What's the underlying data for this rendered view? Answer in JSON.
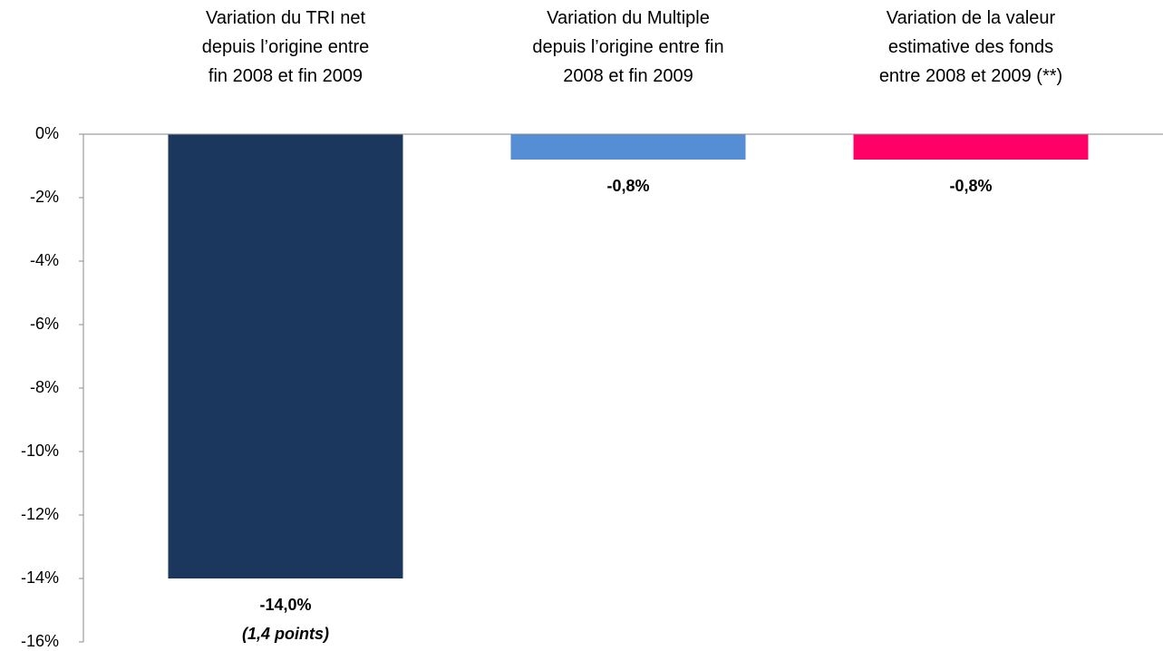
{
  "chart_data": {
    "type": "bar",
    "categories": [
      "Variation du TRI net\ndepuis l’origine entre\nfin 2008 et fin 2009",
      "Variation du Multiple\ndepuis l’origine entre fin\n2008 et fin 2009",
      "Variation de la valeur\nestimative des fonds\nentre 2008 et 2009 (**)"
    ],
    "values": [
      -14.0,
      -0.8,
      -0.8
    ],
    "value_labels": [
      "-14,0%",
      "-0,8%",
      "-0,8%"
    ],
    "colors": [
      "#1b375d",
      "#558ed5",
      "#ff0066"
    ],
    "annotation": "(1,4 points)",
    "ylim": [
      -16,
      0
    ],
    "yticks": [
      {
        "value": 0,
        "label": "0%"
      },
      {
        "value": -2,
        "label": "-2%"
      },
      {
        "value": -4,
        "label": "-4%"
      },
      {
        "value": -6,
        "label": "-6%"
      },
      {
        "value": -8,
        "label": "-8%"
      },
      {
        "value": -10,
        "label": "-10%"
      },
      {
        "value": -12,
        "label": "-12%"
      },
      {
        "value": -14,
        "label": "-14%"
      },
      {
        "value": -16,
        "label": "-16%"
      }
    ],
    "grid": false
  }
}
